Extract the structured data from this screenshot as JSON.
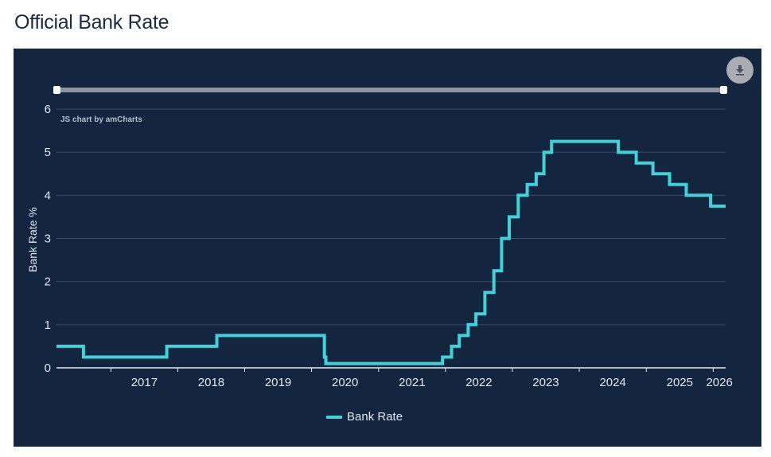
{
  "page": {
    "title": "Official Bank Rate"
  },
  "chart_data": {
    "type": "line",
    "step": true,
    "xlabel": "",
    "ylabel": "Bank Rate %",
    "ylim": [
      0,
      6
    ],
    "xlim": [
      "2016-03-10",
      "2026-03-10"
    ],
    "grid": true,
    "legend_position": "bottom-center",
    "credit": "JS chart by amCharts",
    "yticks": [
      "0",
      "1",
      "2",
      "3",
      "4",
      "5",
      "6"
    ],
    "xticks": [
      "2017",
      "2018",
      "2019",
      "2020",
      "2021",
      "2022",
      "2023",
      "2024",
      "2025",
      "2026"
    ],
    "series": [
      {
        "name": "Bank Rate",
        "color": "#3fd2d8",
        "points": [
          [
            "2016-03-10",
            0.5
          ],
          [
            "2016-08-04",
            0.25
          ],
          [
            "2017-11-02",
            0.5
          ],
          [
            "2018-08-02",
            0.75
          ],
          [
            "2020-03-11",
            0.25
          ],
          [
            "2020-03-19",
            0.1
          ],
          [
            "2021-12-16",
            0.25
          ],
          [
            "2022-02-03",
            0.5
          ],
          [
            "2022-03-17",
            0.75
          ],
          [
            "2022-05-05",
            1.0
          ],
          [
            "2022-06-16",
            1.25
          ],
          [
            "2022-08-04",
            1.75
          ],
          [
            "2022-09-22",
            2.25
          ],
          [
            "2022-11-03",
            3.0
          ],
          [
            "2022-12-15",
            3.5
          ],
          [
            "2023-02-02",
            4.0
          ],
          [
            "2023-03-23",
            4.25
          ],
          [
            "2023-05-11",
            4.5
          ],
          [
            "2023-06-22",
            5.0
          ],
          [
            "2023-08-03",
            5.25
          ],
          [
            "2024-08-01",
            5.0
          ],
          [
            "2024-11-07",
            4.75
          ],
          [
            "2025-02-06",
            4.5
          ],
          [
            "2025-05-08",
            4.25
          ],
          [
            "2025-08-07",
            4.0
          ],
          [
            "2025-12-18",
            3.75
          ],
          [
            "2026-03-10",
            3.75
          ]
        ]
      }
    ]
  },
  "legend": {
    "label": "Bank Rate"
  },
  "icons": {
    "download": "download-icon"
  }
}
